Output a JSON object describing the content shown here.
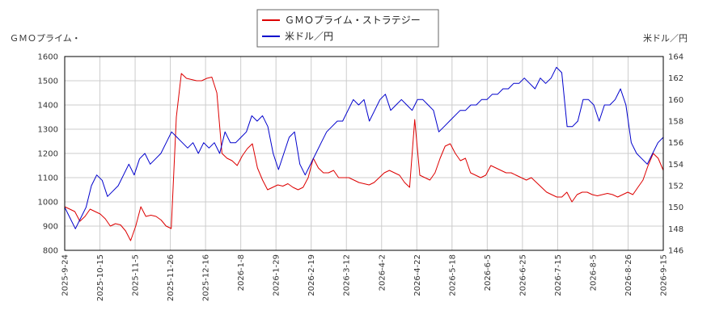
{
  "chart_data": {
    "type": "line",
    "left_axis_title": "ＧＭＯプライム・",
    "right_axis_title": "米ドル／円",
    "legend_position": "top-center",
    "grid": true,
    "x_tick_labels": [
      "2025-9-24",
      "2025-10-15",
      "2025-11-5",
      "2025-11-26",
      "2025-12-16",
      "2026-1-8",
      "2026-1-29",
      "2026-2-19",
      "2026-3-12",
      "2026-4-2",
      "2026-4-22",
      "2026-5-18",
      "2026-6-5",
      "2026-6-25",
      "2026-7-15",
      "2026-8-5",
      "2026-8-26",
      "2026-9-15"
    ],
    "y_left": {
      "min": 800,
      "max": 1600,
      "ticks": [
        800,
        900,
        1000,
        1100,
        1200,
        1300,
        1400,
        1500,
        1600
      ]
    },
    "y_right": {
      "min": 146,
      "max": 164,
      "ticks": [
        146,
        148,
        150,
        152,
        154,
        156,
        158,
        160,
        162,
        164
      ]
    },
    "series": [
      {
        "name": "ＧＭＯプライム・ストラテジー",
        "axis": "left",
        "color": "#dd0000",
        "values": [
          980,
          970,
          960,
          920,
          940,
          970,
          960,
          950,
          930,
          900,
          910,
          905,
          880,
          840,
          900,
          980,
          940,
          945,
          940,
          925,
          900,
          890,
          1350,
          1530,
          1510,
          1505,
          1500,
          1500,
          1510,
          1515,
          1450,
          1200,
          1180,
          1170,
          1150,
          1190,
          1220,
          1240,
          1140,
          1090,
          1050,
          1060,
          1070,
          1065,
          1075,
          1060,
          1050,
          1060,
          1100,
          1180,
          1140,
          1120,
          1120,
          1130,
          1100,
          1100,
          1100,
          1090,
          1080,
          1075,
          1070,
          1080,
          1100,
          1120,
          1130,
          1120,
          1110,
          1080,
          1060,
          1340,
          1110,
          1100,
          1090,
          1120,
          1180,
          1230,
          1240,
          1200,
          1170,
          1180,
          1120,
          1110,
          1100,
          1110,
          1150,
          1140,
          1130,
          1120,
          1120,
          1110,
          1100,
          1090,
          1100,
          1080,
          1060,
          1040,
          1030,
          1020,
          1020,
          1040,
          1000,
          1030,
          1040,
          1040,
          1030,
          1025,
          1030,
          1035,
          1030,
          1020,
          1030,
          1040,
          1030,
          1060,
          1090,
          1150,
          1200,
          1180,
          1130
        ]
      },
      {
        "name": "米ドル／円",
        "axis": "right",
        "color": "#0000cc",
        "values": [
          150,
          149,
          148,
          149,
          150,
          152,
          153,
          152.5,
          151,
          151.5,
          152,
          153,
          154,
          153,
          154.5,
          155,
          154,
          154.5,
          155,
          156,
          157,
          156.5,
          156,
          155.5,
          156,
          155,
          156,
          155.5,
          156,
          155,
          157,
          156,
          156,
          156.5,
          157,
          158.5,
          158,
          158.5,
          157.5,
          155,
          153.5,
          155,
          156.5,
          157,
          154,
          153,
          154,
          155,
          156,
          157,
          157.5,
          158,
          158,
          159,
          160,
          159.5,
          160,
          158,
          159,
          160,
          160.5,
          159,
          159.5,
          160,
          159.5,
          159,
          160,
          160,
          159.5,
          159,
          157,
          157.5,
          158,
          158.5,
          159,
          159,
          159.5,
          159.5,
          160,
          160,
          160.5,
          160.5,
          161,
          161,
          161.5,
          161.5,
          162,
          161.5,
          161,
          162,
          161.5,
          162,
          163,
          162.5,
          157.5,
          157.5,
          158,
          160,
          160,
          159.5,
          158,
          159.5,
          159.5,
          160,
          161,
          159.5,
          156,
          155,
          154.5,
          154,
          155,
          156,
          156.5
        ]
      }
    ]
  }
}
